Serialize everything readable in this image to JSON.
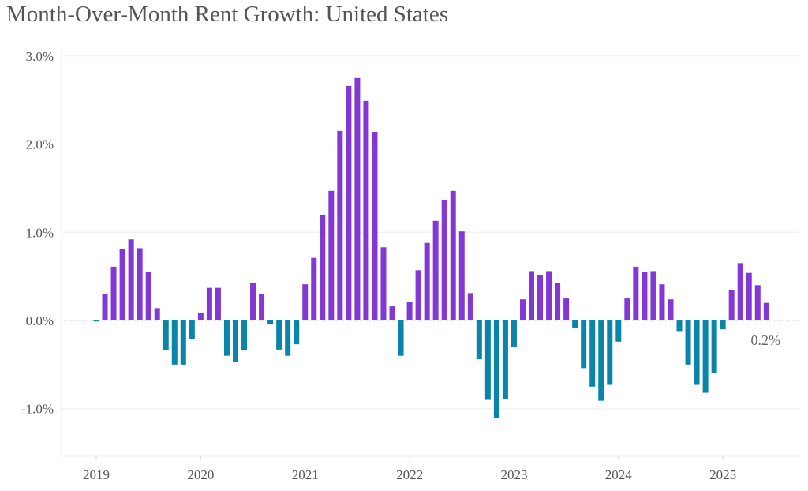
{
  "chart_data": {
    "type": "bar",
    "title": "Month-Over-Month Rent Growth: United States",
    "xlabel": "",
    "ylabel": "",
    "ylim": [
      -1.55,
      3.1
    ],
    "yticks": [
      3.0,
      2.0,
      1.0,
      0.0,
      -1.0
    ],
    "ytick_labels": [
      "3.0%",
      "2.0%",
      "1.0%",
      "0.0%",
      "-1.0%"
    ],
    "xtick_labels": [
      "2019",
      "2020",
      "2021",
      "2022",
      "2023",
      "2024",
      "2025"
    ],
    "grid": true,
    "positive_color": "#8338D6",
    "negative_color": "#0A85AA",
    "start_month": "2019-01",
    "end_month": "2025-06",
    "last_value_label": "0.2%",
    "values": [
      -0.01,
      0.3,
      0.61,
      0.81,
      0.92,
      0.82,
      0.55,
      0.14,
      -0.34,
      -0.5,
      -0.5,
      -0.21,
      0.09,
      0.37,
      0.37,
      -0.4,
      -0.47,
      -0.34,
      0.43,
      0.3,
      -0.04,
      -0.33,
      -0.4,
      -0.27,
      0.41,
      0.71,
      1.2,
      1.47,
      2.15,
      2.66,
      2.75,
      2.49,
      2.14,
      0.83,
      0.16,
      -0.4,
      0.21,
      0.57,
      0.88,
      1.13,
      1.37,
      1.47,
      1.01,
      0.31,
      -0.44,
      -0.9,
      -1.11,
      -0.89,
      -0.3,
      0.24,
      0.56,
      0.51,
      0.56,
      0.43,
      0.25,
      -0.09,
      -0.54,
      -0.75,
      -0.91,
      -0.73,
      -0.24,
      0.25,
      0.61,
      0.55,
      0.56,
      0.41,
      0.24,
      -0.12,
      -0.5,
      -0.73,
      -0.82,
      -0.6,
      -0.1,
      0.34,
      0.65,
      0.54,
      0.4,
      0.2
    ]
  }
}
